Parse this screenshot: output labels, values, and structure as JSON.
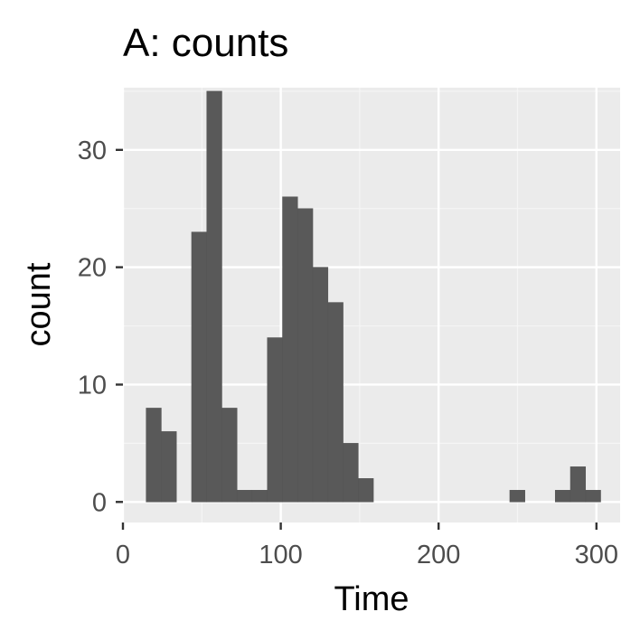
{
  "chart_data": {
    "type": "bar",
    "title": "A: counts",
    "xlabel": "Time",
    "ylabel": "count",
    "xlim": [
      0,
      315
    ],
    "ylim": [
      -1.75,
      35.3
    ],
    "x_ticks": [
      0,
      100,
      200,
      300
    ],
    "y_ticks": [
      0,
      10,
      20,
      30
    ],
    "x_tick_labels": [
      "0",
      "100",
      "200",
      "300"
    ],
    "y_tick_labels": [
      "0",
      "10",
      "20",
      "30"
    ],
    "bin_width": 9.6,
    "bin_centers": [
      19.5,
      29.1,
      38.7,
      48.3,
      57.9,
      67.5,
      77.1,
      86.7,
      96.3,
      105.9,
      115.5,
      125.1,
      134.7,
      144.3,
      153.9,
      163.5,
      173.1,
      182.7,
      192.3,
      201.9,
      211.5,
      221.1,
      230.7,
      240.3,
      249.9,
      259.5,
      269.1,
      278.7,
      288.3,
      297.9
    ],
    "counts": [
      8,
      6,
      0,
      23,
      35,
      8,
      1,
      1,
      14,
      26,
      25,
      20,
      17,
      5,
      2,
      0,
      0,
      0,
      0,
      0,
      0,
      0,
      0,
      0,
      1,
      0,
      0,
      1,
      3,
      1
    ],
    "grid": true,
    "colors": {
      "panel_background": "#ebebeb",
      "grid_major": "#ffffff",
      "grid_minor": "#f5f5f5",
      "bar_fill": "#595959",
      "tick": "#333333",
      "tick_label": "#4d4d4d",
      "text": "#000000"
    }
  }
}
